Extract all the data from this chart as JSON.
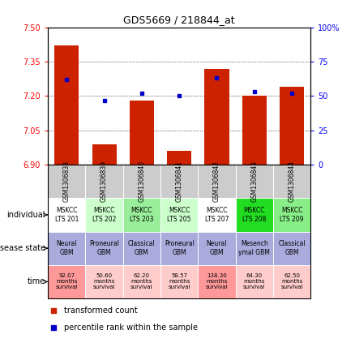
{
  "title": "GDS5669 / 218844_at",
  "samples": [
    "GSM1306838",
    "GSM1306839",
    "GSM1306840",
    "GSM1306841",
    "GSM1306842",
    "GSM1306843",
    "GSM1306844"
  ],
  "transformed_counts": [
    7.42,
    6.99,
    7.18,
    6.96,
    7.32,
    7.2,
    7.24
  ],
  "percentile_ranks": [
    62,
    47,
    52,
    50,
    63,
    53,
    52
  ],
  "ylim_left": [
    6.9,
    7.5
  ],
  "yticks_left": [
    6.9,
    7.05,
    7.2,
    7.35,
    7.5
  ],
  "ylim_right": [
    0,
    100
  ],
  "yticks_right": [
    0,
    25,
    50,
    75,
    100
  ],
  "bar_color": "#cc2200",
  "dot_color": "#0000cc",
  "sample_row_color": "#cccccc",
  "individual_labels": [
    "MSKCC\nLTS 201",
    "MSKCC\nLTS 202",
    "MSKCC\nLTS 203",
    "MSKCC\nLTS 205",
    "MSKCC\nLTS 207",
    "MSKCC\nLTS 208",
    "MSKCC\nLTS 209"
  ],
  "individual_colors": [
    "#ffffff",
    "#ccffcc",
    "#99ee99",
    "#ccffcc",
    "#ffffff",
    "#22dd22",
    "#88ee88"
  ],
  "disease_labels": [
    "Neural\nGBM",
    "Proneural\nGBM",
    "Classical\nGBM",
    "Proneural\nGBM",
    "Neural\nGBM",
    "Mesench\nymal GBM",
    "Classical\nGBM"
  ],
  "disease_colors": [
    "#aaaadd",
    "#aaaadd",
    "#aaaadd",
    "#aaaadd",
    "#aaaadd",
    "#aaaadd",
    "#aaaadd"
  ],
  "time_labels": [
    "92.07\nmonths\nsurvival",
    "50.60\nmonths\nsurvival",
    "62.20\nmonths\nsurvival",
    "58.57\nmonths\nsurvival",
    "138.30\nmonths\nsurvival",
    "64.30\nmonths\nsurvival",
    "62.50\nmonths\nsurvival"
  ],
  "time_colors": [
    "#ff9999",
    "#ffcccc",
    "#ffcccc",
    "#ffcccc",
    "#ff9999",
    "#ffcccc",
    "#ffcccc"
  ],
  "legend_bar_label": "transformed count",
  "legend_dot_label": "percentile rank within the sample"
}
